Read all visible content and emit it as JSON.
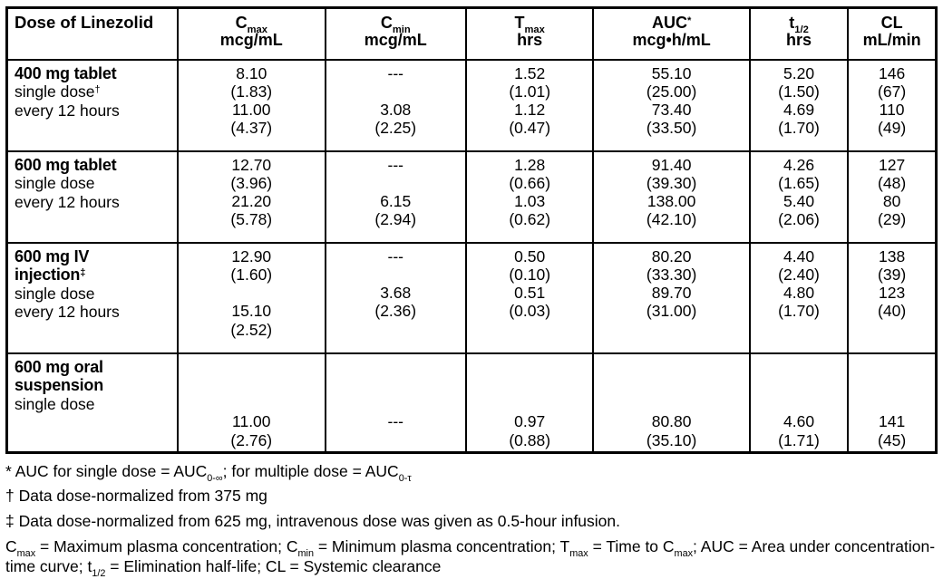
{
  "table": {
    "columns": [
      {
        "id": "dose",
        "title_segments": [
          {
            "t": "Dose of Linezolid"
          }
        ],
        "unit": ""
      },
      {
        "id": "cmax",
        "title_segments": [
          {
            "t": "C"
          },
          {
            "t": "max",
            "sub": true
          }
        ],
        "unit": "mcg/mL"
      },
      {
        "id": "cmin",
        "title_segments": [
          {
            "t": "C"
          },
          {
            "t": "min",
            "sub": true
          }
        ],
        "unit": "mcg/mL"
      },
      {
        "id": "tmax",
        "title_segments": [
          {
            "t": "T"
          },
          {
            "t": "max",
            "sub": true
          }
        ],
        "unit": "hrs"
      },
      {
        "id": "auc",
        "title_segments": [
          {
            "t": "AUC"
          },
          {
            "t": "*",
            "sup": true
          }
        ],
        "unit": "mcg•h/mL"
      },
      {
        "id": "t12",
        "title_segments": [
          {
            "t": "t"
          },
          {
            "t": "1/2",
            "sub": true
          }
        ],
        "unit": "hrs"
      },
      {
        "id": "cl",
        "title_segments": [
          {
            "t": "CL"
          }
        ],
        "unit": "mL/min"
      }
    ],
    "rows": [
      {
        "label": [
          {
            "bold": true,
            "segments": [
              {
                "t": "400 mg tablet"
              }
            ]
          },
          {
            "segments": [
              {
                "t": "single dose"
              },
              {
                "t": "†",
                "sup": true
              }
            ]
          },
          {
            "segments": [
              {
                "t": "every 12 hours"
              }
            ]
          }
        ],
        "cells": {
          "cmax": [
            "8.10",
            "(1.83)",
            "11.00",
            "(4.37)"
          ],
          "cmin": [
            "---",
            "",
            "3.08",
            "(2.25)"
          ],
          "tmax": [
            "1.52",
            "(1.01)",
            "1.12",
            "(0.47)"
          ],
          "auc": [
            "55.10",
            "(25.00)",
            "73.40",
            "(33.50)"
          ],
          "t12": [
            "5.20",
            "(1.50)",
            "4.69",
            "(1.70)"
          ],
          "cl": [
            "146",
            "(67)",
            "110",
            "(49)"
          ]
        }
      },
      {
        "label": [
          {
            "bold": true,
            "segments": [
              {
                "t": "600 mg tablet"
              }
            ]
          },
          {
            "segments": [
              {
                "t": "single dose"
              }
            ]
          },
          {
            "segments": [
              {
                "t": "every 12 hours"
              }
            ]
          }
        ],
        "cells": {
          "cmax": [
            "12.70",
            "(3.96)",
            "21.20",
            "(5.78)"
          ],
          "cmin": [
            "---",
            "",
            "6.15",
            "(2.94)"
          ],
          "tmax": [
            "1.28",
            "(0.66)",
            "1.03",
            "(0.62)"
          ],
          "auc": [
            "91.40",
            "(39.30)",
            "138.00",
            "(42.10)"
          ],
          "t12": [
            "4.26",
            "(1.65)",
            "5.40",
            "(2.06)"
          ],
          "cl": [
            "127",
            "(48)",
            "80",
            "(29)"
          ]
        }
      },
      {
        "label": [
          {
            "bold": true,
            "segments": [
              {
                "t": "600 mg IV"
              }
            ]
          },
          {
            "bold": true,
            "segments": [
              {
                "t": "injection"
              },
              {
                "t": "‡",
                "sup": true
              }
            ]
          },
          {
            "segments": [
              {
                "t": "single dose"
              }
            ]
          },
          {
            "segments": [
              {
                "t": "every 12 hours"
              }
            ]
          }
        ],
        "cells": {
          "cmax": [
            "12.90",
            "(1.60)",
            "",
            "15.10",
            "(2.52)"
          ],
          "cmin": [
            "---",
            "",
            "3.68",
            "(2.36)"
          ],
          "tmax": [
            "0.50",
            "(0.10)",
            "0.51",
            "(0.03)"
          ],
          "auc": [
            "80.20",
            "(33.30)",
            "89.70",
            "(31.00)"
          ],
          "t12": [
            "4.40",
            "(2.40)",
            "4.80",
            "(1.70)"
          ],
          "cl": [
            "138",
            "(39)",
            "123",
            "(40)"
          ]
        }
      },
      {
        "label": [
          {
            "bold": true,
            "segments": [
              {
                "t": "600 mg oral"
              }
            ]
          },
          {
            "bold": true,
            "segments": [
              {
                "t": "suspension"
              }
            ]
          },
          {
            "segments": [
              {
                "t": "single dose"
              }
            ]
          }
        ],
        "cells": {
          "cmax": [
            "",
            "",
            "",
            "11.00",
            "(2.76)"
          ],
          "cmin": [
            "",
            "",
            "",
            "---"
          ],
          "tmax": [
            "",
            "",
            "",
            "0.97",
            "(0.88)"
          ],
          "auc": [
            "",
            "",
            "",
            "80.80",
            "(35.10)"
          ],
          "t12": [
            "",
            "",
            "",
            "4.60",
            "(1.71)"
          ],
          "cl": [
            "",
            "",
            "",
            "141",
            "(45)"
          ]
        }
      }
    ]
  },
  "footnotes": [
    {
      "id": "auc-note",
      "segments": [
        {
          "t": "* AUC for single dose = AUC"
        },
        {
          "t": "0-∞",
          "sub": true
        },
        {
          "t": "; for multiple dose = AUC"
        },
        {
          "t": "0-τ",
          "sub": true
        }
      ]
    },
    {
      "id": "dagger-note",
      "segments": [
        {
          "t": "† Data dose-normalized from 375 mg"
        }
      ]
    },
    {
      "id": "double-dagger-note",
      "segments": [
        {
          "t": "‡ Data dose-normalized from 625 mg, intravenous dose was given as 0.5-hour infusion."
        }
      ]
    },
    {
      "id": "definitions",
      "segments": [
        {
          "t": "C"
        },
        {
          "t": "max",
          "sub": true
        },
        {
          "t": " = Maximum plasma concentration; C"
        },
        {
          "t": "min",
          "sub": true
        },
        {
          "t": " = Minimum plasma concentration; T"
        },
        {
          "t": "max",
          "sub": true
        },
        {
          "t": " = Time to C"
        },
        {
          "t": "max",
          "sub": true
        },
        {
          "t": "; AUC = Area under concentration-time curve; t"
        },
        {
          "t": "1/2",
          "sub": true
        },
        {
          "t": " = Elimination half-life; CL = Systemic clearance"
        }
      ]
    }
  ]
}
